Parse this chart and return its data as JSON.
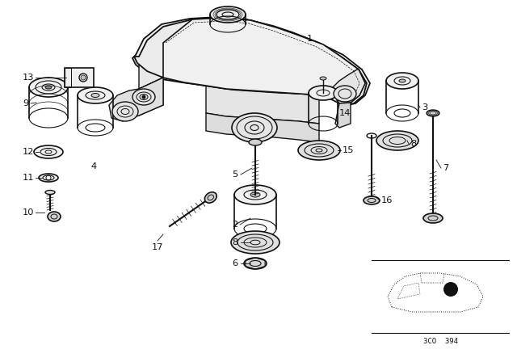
{
  "bg_color": "#ffffff",
  "line_color": "#111111",
  "fig_width": 6.4,
  "fig_height": 4.48,
  "dpi": 100,
  "car_inset_label": "3CO  394"
}
